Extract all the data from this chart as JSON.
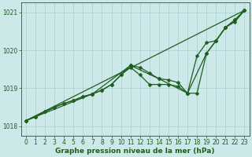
{
  "background_color": "#cce8e8",
  "grid_color": "#aacfcf",
  "line_color": "#1f5e1f",
  "marker_color": "#1f5e1f",
  "xlabel": "Graphe pression niveau de la mer (hPa)",
  "ylim": [
    1017.75,
    1021.25
  ],
  "xlim": [
    -0.5,
    23.5
  ],
  "yticks": [
    1018,
    1019,
    1020,
    1021
  ],
  "xticks": [
    0,
    1,
    2,
    3,
    4,
    5,
    6,
    7,
    8,
    9,
    10,
    11,
    12,
    13,
    14,
    15,
    16,
    17,
    18,
    19,
    20,
    21,
    22,
    23
  ],
  "series": [
    {
      "x": [
        0,
        1,
        2,
        3,
        4,
        5,
        6,
        7,
        8,
        9,
        10,
        11,
        12,
        13,
        14,
        15,
        16,
        17,
        18,
        19,
        20,
        21,
        22,
        23
      ],
      "y": [
        1018.15,
        1018.25,
        1018.38,
        1018.5,
        1018.6,
        1018.68,
        1018.78,
        1018.85,
        1018.95,
        1019.1,
        1019.35,
        1019.6,
        1019.55,
        1019.4,
        1019.25,
        1019.22,
        1019.15,
        1018.87,
        1018.87,
        1019.92,
        1020.25,
        1020.6,
        1020.8,
        1021.05
      ],
      "marker": true
    },
    {
      "x": [
        0,
        1,
        2,
        3,
        4,
        5,
        6,
        7,
        8,
        9,
        10,
        11,
        12,
        13,
        14,
        15,
        16,
        17,
        18,
        19,
        20,
        21,
        22,
        23
      ],
      "y": [
        1018.15,
        1018.25,
        1018.38,
        1018.5,
        1018.6,
        1018.68,
        1018.78,
        1018.85,
        1018.95,
        1019.1,
        1019.35,
        1019.55,
        1019.35,
        1019.1,
        1019.1,
        1019.1,
        1019.05,
        1018.87,
        1019.85,
        1020.2,
        1020.25,
        1020.6,
        1020.75,
        1021.05
      ],
      "marker": true
    },
    {
      "x": [
        0,
        23
      ],
      "y": [
        1018.15,
        1021.05
      ],
      "marker": false
    },
    {
      "x": [
        0,
        7,
        11,
        14,
        17,
        19,
        20,
        21,
        22,
        23
      ],
      "y": [
        1018.15,
        1018.85,
        1019.6,
        1019.25,
        1018.87,
        1019.92,
        1020.25,
        1020.6,
        1020.8,
        1021.05
      ],
      "marker": true
    }
  ],
  "marker_size": 2.5,
  "line_width": 0.9,
  "tick_fontsize": 5.5,
  "label_fontsize": 6.5,
  "label_fontweight": "bold"
}
